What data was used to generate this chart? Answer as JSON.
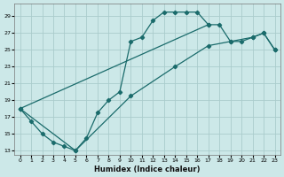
{
  "xlabel": "Humidex (Indice chaleur)",
  "bg_color": "#cce8e8",
  "grid_color": "#aacccc",
  "line_color": "#1a6b6b",
  "xlim_min": -0.5,
  "xlim_max": 23.5,
  "ylim_min": 12.5,
  "ylim_max": 30.5,
  "xticks": [
    0,
    1,
    2,
    3,
    4,
    5,
    6,
    7,
    8,
    9,
    10,
    11,
    12,
    13,
    14,
    15,
    16,
    17,
    18,
    19,
    20,
    21,
    22,
    23
  ],
  "yticks": [
    13,
    15,
    17,
    19,
    21,
    23,
    25,
    27,
    29
  ],
  "curve1_x": [
    0,
    1,
    2,
    3,
    4,
    5,
    6,
    7,
    8,
    9,
    10,
    11,
    12,
    13,
    14,
    15,
    16,
    17
  ],
  "curve1_y": [
    18,
    16.5,
    15,
    14,
    13.5,
    13,
    14.5,
    17.5,
    19,
    20,
    26,
    26.5,
    28.5,
    29.5,
    29.5,
    29.5,
    29.5,
    28
  ],
  "curve2_x": [
    0,
    17,
    18,
    19,
    20,
    21,
    22,
    23
  ],
  "curve2_y": [
    18,
    28,
    28,
    26,
    26,
    26.5,
    27,
    25
  ],
  "curve3_x": [
    0,
    5,
    10,
    14,
    17,
    19,
    21,
    22,
    23
  ],
  "curve3_y": [
    18,
    13,
    19.5,
    23,
    25.5,
    26,
    26.5,
    27,
    25
  ]
}
